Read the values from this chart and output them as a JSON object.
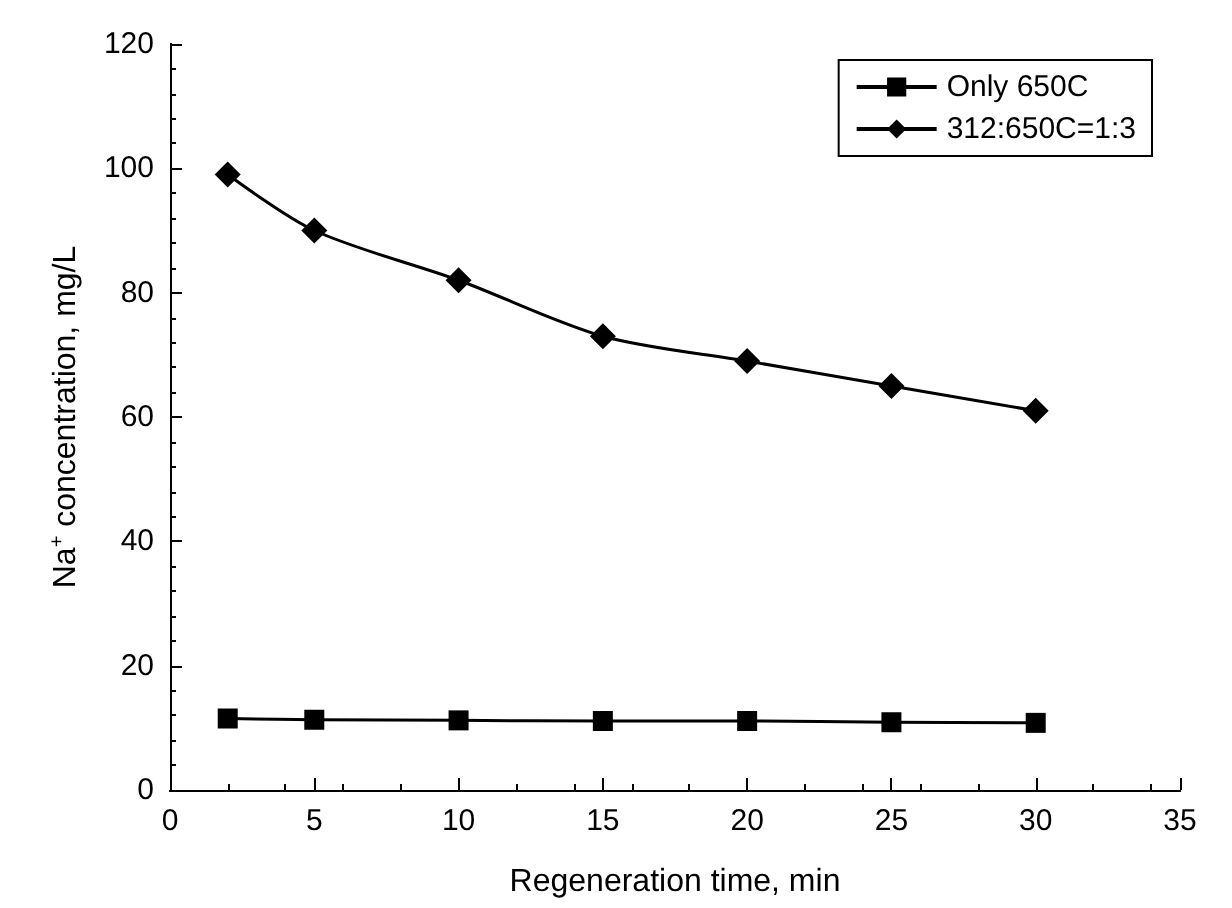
{
  "chart_data": {
    "type": "line",
    "xlabel": "Regeneration time, min",
    "ylabel": "Na$^{+}$ concentration, mg/L",
    "x": [
      2,
      5,
      10,
      15,
      20,
      25,
      30
    ],
    "series": [
      {
        "name": "Only 650C",
        "color": "#000000",
        "marker": "square",
        "values": [
          11.5,
          11.3,
          11.2,
          11.1,
          11.1,
          10.9,
          10.8
        ]
      },
      {
        "name": "312:650C=1:3",
        "color": "#000000",
        "marker": "diamond",
        "values": [
          99,
          90,
          82,
          73,
          69,
          65,
          61
        ]
      }
    ],
    "xlim": [
      0,
      35
    ],
    "xticks": [
      0,
      5,
      10,
      15,
      20,
      25,
      30,
      35
    ],
    "ylim": [
      0,
      120
    ],
    "yticks": [
      0,
      20,
      40,
      60,
      80,
      100,
      120
    ],
    "grid": false,
    "legend": "top right",
    "line_style": "solid"
  }
}
